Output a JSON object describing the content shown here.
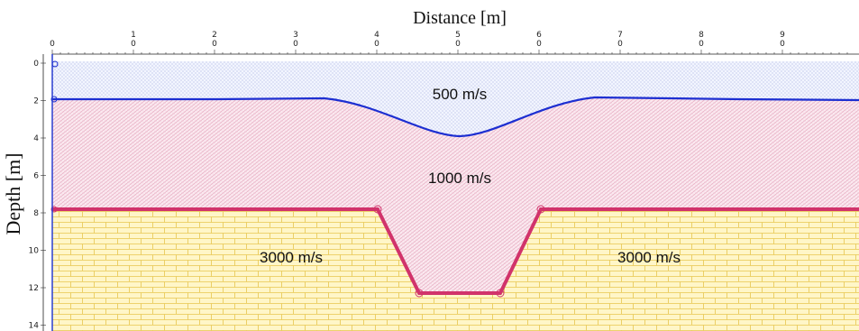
{
  "title": "Distance [m]",
  "y_title": "Depth [m]",
  "x_ticks": [
    {
      "top": "",
      "bottom": "0"
    },
    {
      "top": "1",
      "bottom": "0"
    },
    {
      "top": "2",
      "bottom": "0"
    },
    {
      "top": "3",
      "bottom": "0"
    },
    {
      "top": "4",
      "bottom": "0"
    },
    {
      "top": "5",
      "bottom": "0"
    },
    {
      "top": "6",
      "bottom": "0"
    },
    {
      "top": "7",
      "bottom": "0"
    },
    {
      "top": "8",
      "bottom": "0"
    },
    {
      "top": "9",
      "bottom": "0"
    }
  ],
  "y_ticks": [
    "0",
    "2",
    "4",
    "6",
    "8",
    "10",
    "12",
    "14"
  ],
  "layers": {
    "top": "500 m/s",
    "middle": "1000 m/s",
    "bottom_left": "3000 m/s",
    "bottom_right": "3000 m/s"
  },
  "colors": {
    "top_fill": "#f2f5ff",
    "top_dots": "#8f9bd6",
    "mid_fill": "#fbe9f0",
    "mid_hatch": "#e3a2b9",
    "bot_fill": "#fff6c8",
    "bot_brick": "#e7c64f",
    "interface1": "#1d2fd1",
    "interface2": "#d1336b",
    "axis": "#2a3fd0"
  }
}
